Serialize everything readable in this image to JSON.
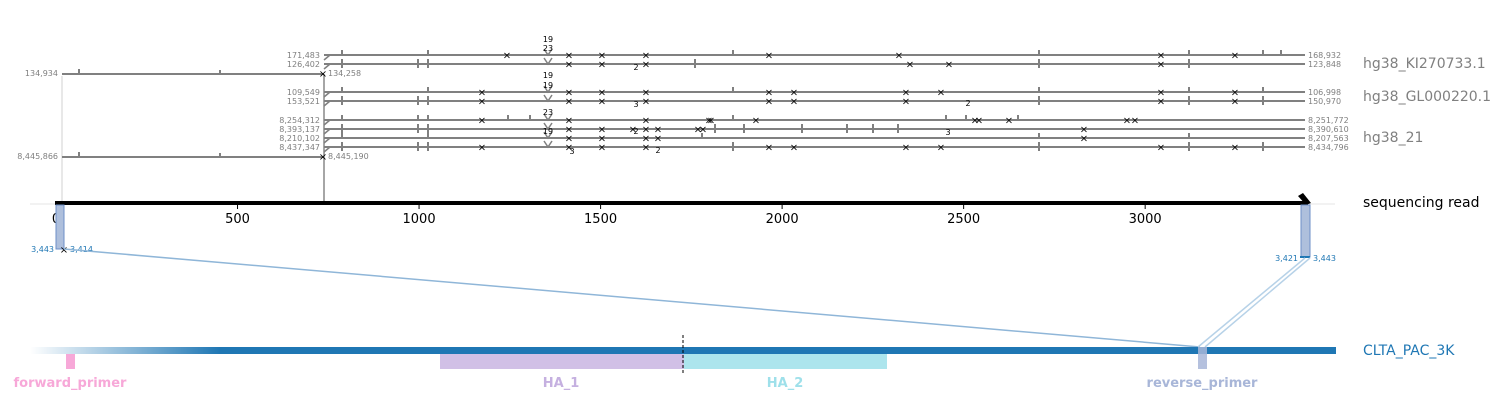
{
  "read": {
    "label": "sequencing read",
    "axis_ticks": [
      "0",
      "500",
      "1000",
      "1500",
      "2000",
      "2500",
      "3000"
    ],
    "range": [
      0,
      3443
    ]
  },
  "targets": [
    {
      "name": "hg38_KI270733.1"
    },
    {
      "name": "hg38_GL000220.1"
    },
    {
      "name": "hg38_21"
    }
  ],
  "alignments": [
    {
      "start_label": "171,483",
      "end_label": "168,932"
    },
    {
      "start_label": "126,402",
      "end_label": "123,848"
    },
    {
      "start_label": "109,549",
      "end_label": "106,998"
    },
    {
      "start_label": "153,521",
      "end_label": "150,970"
    },
    {
      "start_label": "8,254,312",
      "end_label": "8,251,772"
    },
    {
      "start_label": "8,393,137",
      "end_label": "8,390,610"
    },
    {
      "start_label": "8,210,102",
      "end_label": "8,207,563"
    },
    {
      "start_label": "8,437,347",
      "end_label": "8,434,796"
    }
  ],
  "left_alignments": [
    {
      "start_label": "134,934",
      "end_label": "134,258"
    },
    {
      "start_label": "8,445,866",
      "end_label": "8,445,190"
    }
  ],
  "insertion_labels": [
    "19",
    "23",
    "19",
    "19",
    "23",
    "19",
    "2",
    "3",
    "2",
    "2",
    "2",
    "3",
    "3"
  ],
  "amplicon": {
    "name": "CLTA_PAC_3K",
    "left_coords": {
      "a": "3,443",
      "b": "3,414"
    },
    "right_coords": {
      "a": "3,421",
      "b": "3,443"
    },
    "features": [
      {
        "name": "forward_primer",
        "color": "#f7a8d8"
      },
      {
        "name": "HA_1",
        "color": "#c5b0e0"
      },
      {
        "name": "HA_2",
        "color": "#9ee0ea"
      },
      {
        "name": "reverse_primer",
        "color": "#a8b6d8"
      }
    ]
  },
  "colors": {
    "alignment": "#808080",
    "amplicon": "#1f77b4",
    "read": "#000000"
  }
}
